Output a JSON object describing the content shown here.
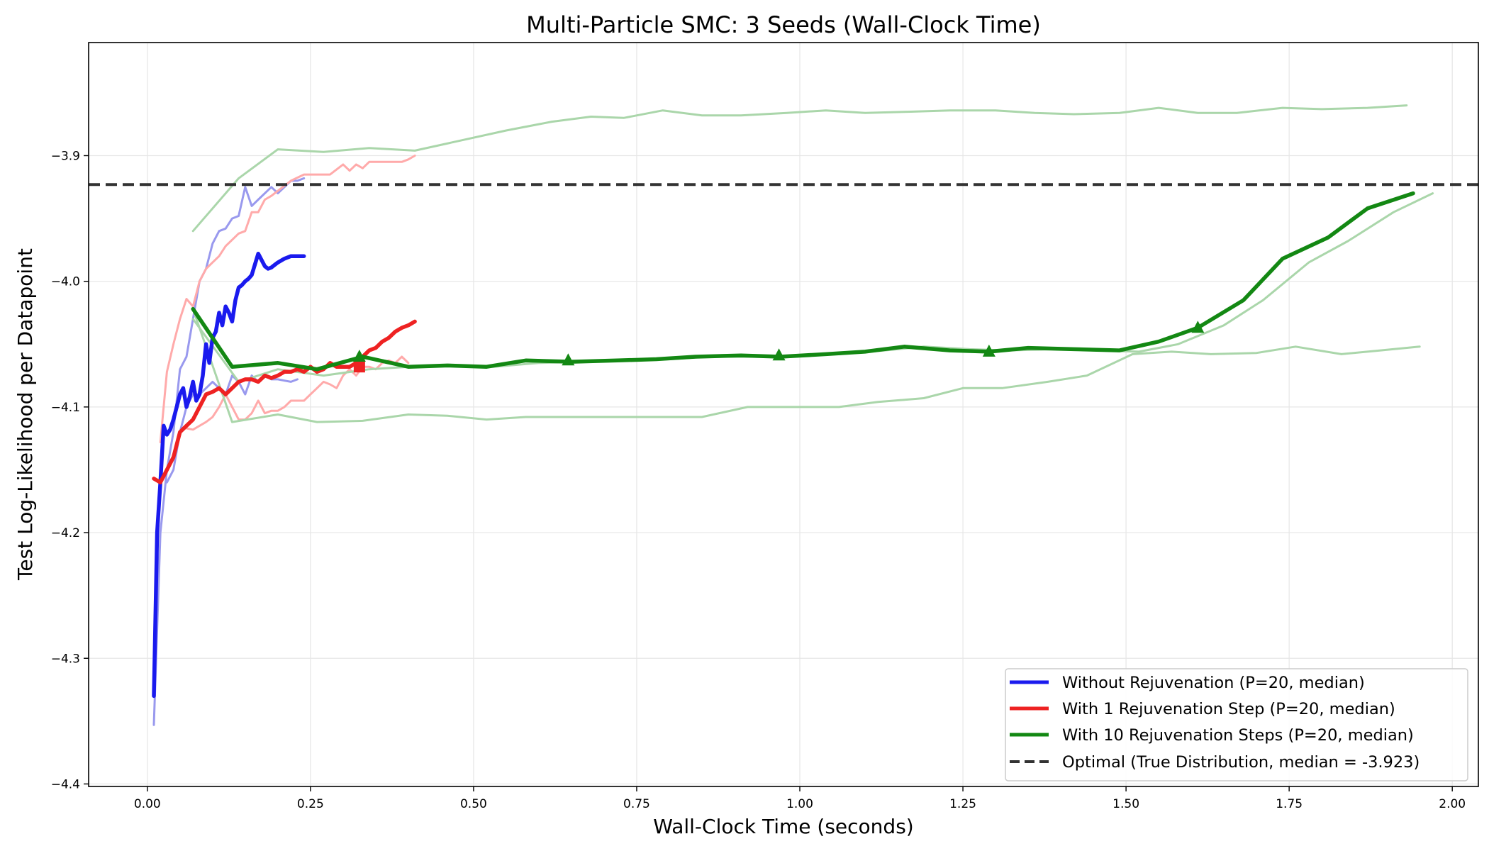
{
  "chart_data": {
    "type": "line",
    "title": "Multi-Particle SMC: 3 Seeds (Wall-Clock Time)",
    "xlabel": "Wall-Clock Time (seconds)",
    "ylabel": "Test Log-Likelihood per Datapoint",
    "xlim": [
      -0.09,
      2.04
    ],
    "ylim": [
      -4.402,
      -3.81
    ],
    "x_ticks": [
      0.0,
      0.25,
      0.5,
      0.75,
      1.0,
      1.25,
      1.5,
      1.75,
      2.0
    ],
    "x_tick_labels": [
      "0.00",
      "0.25",
      "0.50",
      "0.75",
      "1.00",
      "1.25",
      "1.50",
      "1.75",
      "2.00"
    ],
    "y_ticks": [
      -4.4,
      -4.3,
      -4.2,
      -4.1,
      -4.0,
      -3.9
    ],
    "y_tick_labels": [
      "−4.4",
      "−4.3",
      "−4.2",
      "−4.1",
      "−4.0",
      "−3.9"
    ],
    "grid": true,
    "legend_position": "lower right",
    "reference_line": {
      "name": "Optimal (True Distribution, median = -3.923)",
      "y": -3.923,
      "color": "#333333",
      "style": "dashed"
    },
    "series": [
      {
        "name": "",
        "role": "seed",
        "color": "#9999ee",
        "x": [
          0.01,
          0.02,
          0.03,
          0.04,
          0.05,
          0.06,
          0.07,
          0.08,
          0.09,
          0.1,
          0.11,
          0.12,
          0.13,
          0.14,
          0.15,
          0.16,
          0.17,
          0.18,
          0.19,
          0.2,
          0.21,
          0.22,
          0.23,
          0.24
        ],
        "y": [
          -4.353,
          -4.2,
          -4.15,
          -4.12,
          -4.07,
          -4.06,
          -4.03,
          -4.0,
          -3.99,
          -3.97,
          -3.96,
          -3.958,
          -3.95,
          -3.948,
          -3.925,
          -3.94,
          -3.935,
          -3.93,
          -3.925,
          -3.93,
          -3.925,
          -3.92,
          -3.92,
          -3.918
        ]
      },
      {
        "name": "",
        "role": "seed",
        "color": "#9999ee",
        "x": [
          0.03,
          0.04,
          0.05,
          0.06,
          0.07,
          0.08,
          0.09,
          0.1,
          0.11,
          0.12,
          0.13,
          0.14,
          0.15,
          0.16,
          0.17,
          0.18,
          0.19,
          0.2,
          0.21,
          0.22,
          0.23
        ],
        "y": [
          -4.16,
          -4.15,
          -4.12,
          -4.1,
          -4.09,
          -4.09,
          -4.085,
          -4.08,
          -4.085,
          -4.09,
          -4.075,
          -4.08,
          -4.09,
          -4.075,
          -4.08,
          -4.075,
          -4.078,
          -4.078,
          -4.079,
          -4.08,
          -4.078
        ]
      },
      {
        "name": "",
        "role": "seed",
        "color": "#ffaaaa",
        "x": [
          0.02,
          0.03,
          0.04,
          0.05,
          0.06,
          0.07,
          0.08,
          0.09,
          0.1,
          0.11,
          0.12,
          0.13,
          0.14,
          0.15,
          0.16,
          0.17,
          0.18,
          0.19,
          0.2,
          0.22,
          0.24,
          0.26,
          0.28,
          0.3,
          0.31,
          0.32,
          0.33,
          0.34,
          0.35,
          0.36,
          0.37,
          0.38,
          0.39,
          0.4,
          0.41
        ],
        "y": [
          -4.128,
          -4.072,
          -4.05,
          -4.03,
          -4.014,
          -4.02,
          -4.0,
          -3.99,
          -3.985,
          -3.98,
          -3.972,
          -3.967,
          -3.962,
          -3.96,
          -3.945,
          -3.945,
          -3.935,
          -3.932,
          -3.928,
          -3.92,
          -3.915,
          -3.915,
          -3.915,
          -3.907,
          -3.912,
          -3.907,
          -3.91,
          -3.905,
          -3.905,
          -3.905,
          -3.905,
          -3.905,
          -3.905,
          -3.903,
          -3.9
        ]
      },
      {
        "name": "",
        "role": "seed",
        "color": "#ffaaaa",
        "x": [
          0.06,
          0.07,
          0.08,
          0.09,
          0.1,
          0.11,
          0.12,
          0.13,
          0.14,
          0.15,
          0.16,
          0.17,
          0.18,
          0.19,
          0.2,
          0.21,
          0.22,
          0.23,
          0.24,
          0.25,
          0.26,
          0.27,
          0.28,
          0.29,
          0.3,
          0.31,
          0.32,
          0.33,
          0.34,
          0.35,
          0.36,
          0.37,
          0.38,
          0.39,
          0.4
        ],
        "y": [
          -4.117,
          -4.118,
          -4.115,
          -4.112,
          -4.108,
          -4.1,
          -4.09,
          -4.1,
          -4.11,
          -4.11,
          -4.105,
          -4.095,
          -4.105,
          -4.103,
          -4.103,
          -4.1,
          -4.095,
          -4.095,
          -4.095,
          -4.09,
          -4.085,
          -4.08,
          -4.082,
          -4.085,
          -4.075,
          -4.07,
          -4.075,
          -4.068,
          -4.068,
          -4.07,
          -4.065,
          -4.063,
          -4.065,
          -4.06,
          -4.065
        ]
      },
      {
        "name": "",
        "role": "seed",
        "color": "#aad6aa",
        "x": [
          0.07,
          0.14,
          0.2,
          0.27,
          0.34,
          0.41,
          0.48,
          0.55,
          0.62,
          0.68,
          0.73,
          0.79,
          0.85,
          0.91,
          0.98,
          1.04,
          1.1,
          1.17,
          1.23,
          1.3,
          1.36,
          1.42,
          1.49,
          1.55,
          1.61,
          1.67,
          1.74,
          1.8,
          1.87,
          1.93
        ],
        "y": [
          -3.96,
          -3.918,
          -3.895,
          -3.897,
          -3.894,
          -3.896,
          -3.888,
          -3.88,
          -3.873,
          -3.869,
          -3.87,
          -3.864,
          -3.868,
          -3.868,
          -3.866,
          -3.864,
          -3.866,
          -3.865,
          -3.864,
          -3.864,
          -3.866,
          -3.867,
          -3.866,
          -3.862,
          -3.866,
          -3.866,
          -3.862,
          -3.863,
          -3.862,
          -3.86
        ]
      },
      {
        "name": "",
        "role": "seed",
        "color": "#aad6aa",
        "x": [
          0.07,
          0.13,
          0.2,
          0.26,
          0.33,
          0.4,
          0.46,
          0.52,
          0.58,
          0.65,
          0.72,
          0.79,
          0.85,
          0.92,
          0.99,
          1.06,
          1.12,
          1.19,
          1.25,
          1.31,
          1.38,
          1.44,
          1.51,
          1.57,
          1.63,
          1.7,
          1.76,
          1.83,
          1.89,
          1.95
        ],
        "y": [
          -4.022,
          -4.112,
          -4.106,
          -4.112,
          -4.111,
          -4.106,
          -4.107,
          -4.11,
          -4.108,
          -4.108,
          -4.108,
          -4.108,
          -4.108,
          -4.1,
          -4.1,
          -4.1,
          -4.096,
          -4.093,
          -4.085,
          -4.085,
          -4.08,
          -4.075,
          -4.058,
          -4.056,
          -4.058,
          -4.057,
          -4.052,
          -4.058,
          -4.055,
          -4.052
        ]
      },
      {
        "name": "",
        "role": "seed",
        "color": "#aad6aa",
        "x": [
          0.07,
          0.14,
          0.2,
          0.27,
          0.34,
          0.4,
          0.47,
          0.53,
          0.6,
          0.67,
          0.73,
          0.8,
          0.86,
          0.93,
          1.0,
          1.06,
          1.13,
          1.19,
          1.26,
          1.32,
          1.39,
          1.45,
          1.52,
          1.58,
          1.65,
          1.71,
          1.78,
          1.84,
          1.91,
          1.97
        ],
        "y": [
          -4.03,
          -4.08,
          -4.07,
          -4.075,
          -4.07,
          -4.068,
          -4.067,
          -4.068,
          -4.065,
          -4.064,
          -4.063,
          -4.062,
          -4.06,
          -4.06,
          -4.059,
          -4.058,
          -4.055,
          -4.052,
          -4.054,
          -4.055,
          -4.054,
          -4.055,
          -4.056,
          -4.05,
          -4.035,
          -4.015,
          -3.985,
          -3.968,
          -3.945,
          -3.93
        ]
      },
      {
        "name": "Without Rejuvenation (P=20, median)",
        "role": "median",
        "color": "#1a1aee",
        "x": [
          0.01,
          0.015,
          0.02,
          0.025,
          0.03,
          0.035,
          0.04,
          0.045,
          0.05,
          0.055,
          0.06,
          0.065,
          0.07,
          0.075,
          0.08,
          0.085,
          0.09,
          0.095,
          0.1,
          0.105,
          0.11,
          0.115,
          0.12,
          0.125,
          0.13,
          0.135,
          0.14,
          0.145,
          0.15,
          0.155,
          0.16,
          0.17,
          0.18,
          0.185,
          0.19,
          0.195,
          0.2,
          0.21,
          0.22,
          0.23,
          0.24
        ],
        "y": [
          -4.33,
          -4.2,
          -4.16,
          -4.115,
          -4.122,
          -4.118,
          -4.11,
          -4.1,
          -4.09,
          -4.085,
          -4.1,
          -4.092,
          -4.08,
          -4.095,
          -4.09,
          -4.075,
          -4.05,
          -4.065,
          -4.045,
          -4.04,
          -4.025,
          -4.035,
          -4.02,
          -4.025,
          -4.032,
          -4.015,
          -4.005,
          -4.003,
          -4.0,
          -3.998,
          -3.995,
          -3.978,
          -3.988,
          -3.99,
          -3.989,
          -3.987,
          -3.985,
          -3.982,
          -3.98,
          -3.98,
          -3.98
        ]
      },
      {
        "name": "With 1 Rejuvenation Step (P=20, median)",
        "role": "median",
        "color": "#ee2222",
        "x": [
          0.01,
          0.02,
          0.03,
          0.04,
          0.05,
          0.06,
          0.07,
          0.08,
          0.09,
          0.1,
          0.11,
          0.12,
          0.13,
          0.14,
          0.15,
          0.16,
          0.17,
          0.18,
          0.19,
          0.2,
          0.21,
          0.22,
          0.23,
          0.24,
          0.25,
          0.26,
          0.27,
          0.28,
          0.29,
          0.3,
          0.31,
          0.32
        ],
        "y": [
          -4.157,
          -4.16,
          -4.15,
          -4.14,
          -4.12,
          -4.115,
          -4.11,
          -4.1,
          -4.09,
          -4.088,
          -4.085,
          -4.09,
          -4.085,
          -4.08,
          -4.078,
          -4.078,
          -4.08,
          -4.075,
          -4.077,
          -4.075,
          -4.072,
          -4.072,
          -4.07,
          -4.072,
          -4.068,
          -4.072,
          -4.07,
          -4.065,
          -4.068,
          -4.068,
          -4.068,
          -4.065
        ]
      },
      {
        "name": "",
        "role": "median-continuation",
        "color": "#ee2222",
        "x": [
          0.32,
          0.33,
          0.34,
          0.35,
          0.36,
          0.37,
          0.38,
          0.39,
          0.4,
          0.41
        ],
        "y": [
          -4.065,
          -4.06,
          -4.055,
          -4.053,
          -4.048,
          -4.045,
          -4.04,
          -4.037,
          -4.035,
          -4.032
        ]
      },
      {
        "name": "With 10 Rejuvenation Steps (P=20, median)",
        "role": "median",
        "color": "#138813",
        "x": [
          0.07,
          0.13,
          0.2,
          0.26,
          0.33,
          0.4,
          0.46,
          0.52,
          0.58,
          0.65,
          0.72,
          0.78,
          0.84,
          0.91,
          0.97,
          1.04,
          1.1,
          1.16,
          1.23,
          1.29,
          1.35,
          1.42,
          1.49,
          1.55,
          1.61,
          1.68,
          1.74,
          1.81,
          1.87,
          1.94
        ],
        "y": [
          -4.022,
          -4.068,
          -4.065,
          -4.07,
          -4.06,
          -4.068,
          -4.067,
          -4.068,
          -4.063,
          -4.064,
          -4.063,
          -4.062,
          -4.06,
          -4.059,
          -4.06,
          -4.058,
          -4.056,
          -4.052,
          -4.055,
          -4.056,
          -4.053,
          -4.054,
          -4.055,
          -4.048,
          -4.037,
          -4.015,
          -3.982,
          -3.965,
          -3.942,
          -3.93
        ]
      }
    ],
    "markers": [
      {
        "shape": "square",
        "color": "#ee2222",
        "x": 0.325,
        "y": -4.068
      },
      {
        "shape": "triangle",
        "color": "#138813",
        "x": 0.325,
        "y": -4.06
      },
      {
        "shape": "triangle",
        "color": "#138813",
        "x": 0.645,
        "y": -4.063
      },
      {
        "shape": "triangle",
        "color": "#138813",
        "x": 0.968,
        "y": -4.059
      },
      {
        "shape": "triangle",
        "color": "#138813",
        "x": 1.29,
        "y": -4.056
      },
      {
        "shape": "triangle",
        "color": "#138813",
        "x": 1.61,
        "y": -4.037
      }
    ]
  }
}
